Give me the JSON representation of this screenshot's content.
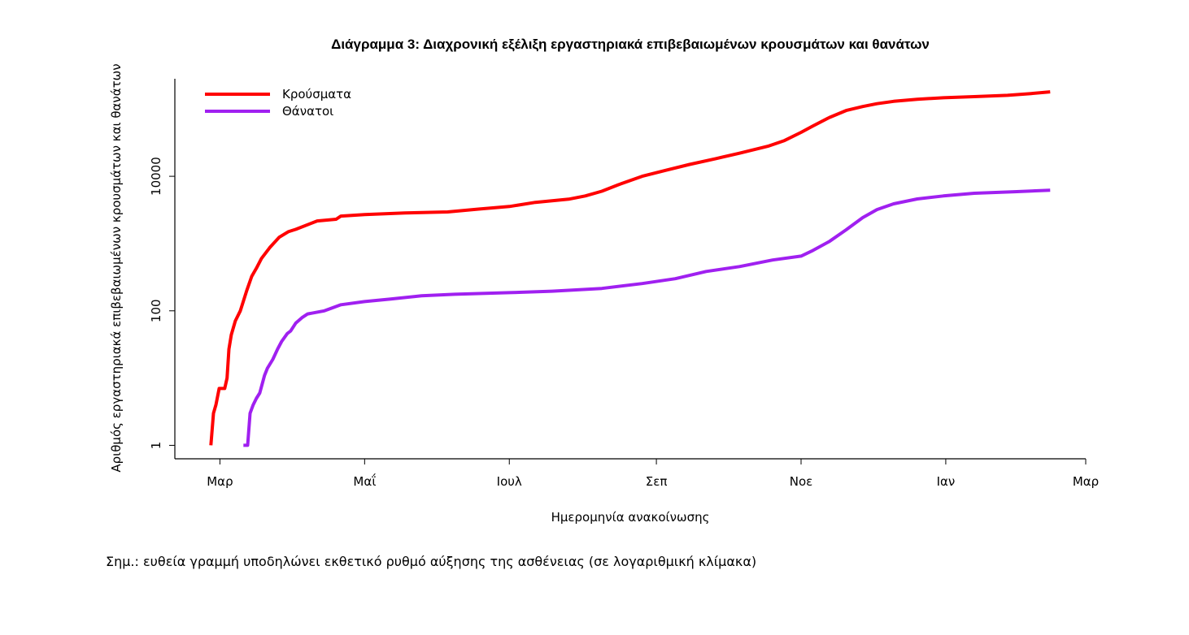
{
  "chart_data": {
    "type": "line",
    "title": "Διάγραμμα 3: Διαχρονική εξέλιξη εργαστηριακά επιβεβαιωμένων κρουσμάτων και θανάτων",
    "xlabel": "Ημερομηνία ανακοίνωσης",
    "ylabel": "Αριθμός εργαστηριακά επιβεβαιωμένων κρουσμάτων και θανάτων",
    "x_unit": "days since Mar 1 (first tick)",
    "xlim": [
      -19,
      365
    ],
    "ylim_log10": [
      -0.2,
      5.45
    ],
    "yscale": "log",
    "x_ticks": [
      {
        "label": "Μαρ",
        "day": 0
      },
      {
        "label": "Μαΐ",
        "day": 61
      },
      {
        "label": "Ιουλ",
        "day": 122
      },
      {
        "label": "Σεπ",
        "day": 184
      },
      {
        "label": "Νοε",
        "day": 245
      },
      {
        "label": "Ιαν",
        "day": 306
      },
      {
        "label": "Μαρ",
        "day": 365
      }
    ],
    "y_ticks": [
      {
        "label": "1",
        "value": 1
      },
      {
        "label": "100",
        "value": 100
      },
      {
        "label": "10000",
        "value": 10000
      }
    ],
    "legend_position": "top-left",
    "grid": false,
    "series": [
      {
        "name": "Κρούσματα",
        "color": "#ff0000",
        "x": [
          -3.8,
          -2.7,
          -1.7,
          -0.3,
          2,
          3,
          3.8,
          4.8,
          6.5,
          8.6,
          11.3,
          13.4,
          15.4,
          17.5,
          21,
          25,
          28.8,
          32,
          41,
          49,
          51,
          61,
          78,
          96,
          109,
          122,
          133,
          147,
          154,
          161,
          168,
          178,
          188,
          198,
          209,
          219,
          231,
          238,
          245,
          250,
          257,
          264,
          271,
          277,
          284,
          294,
          305,
          318,
          332,
          342,
          350
        ],
        "y": [
          1,
          3,
          4,
          7,
          7,
          10,
          27,
          44,
          71,
          100,
          200,
          325,
          430,
          600,
          870,
          1240,
          1500,
          1630,
          2170,
          2300,
          2560,
          2700,
          2850,
          2950,
          3250,
          3560,
          4100,
          4570,
          5100,
          6000,
          7500,
          10000,
          12300,
          15000,
          18300,
          22000,
          28000,
          34000,
          45000,
          56000,
          75000,
          95000,
          109000,
          120000,
          130000,
          140000,
          147000,
          153000,
          160000,
          170000,
          180000
        ]
      },
      {
        "name": "Θάνατοι",
        "color": "#a020f0",
        "x": [
          9.9,
          11.7,
          12.7,
          14,
          15.4,
          16.8,
          18.8,
          20,
          22.3,
          24.3,
          26,
          28.4,
          29.8,
          32,
          34.6,
          37,
          44,
          51,
          61,
          72,
          85,
          99,
          122,
          140,
          161,
          178,
          192,
          205,
          219,
          233,
          245,
          250,
          257,
          264,
          271,
          277,
          284,
          294,
          305,
          318,
          335,
          350
        ],
        "y": [
          1,
          1,
          3,
          4,
          5,
          6,
          11,
          14,
          19,
          27,
          35,
          46,
          50,
          66,
          79,
          90,
          100,
          123,
          137,
          150,
          167,
          176,
          186,
          196,
          215,
          254,
          300,
          385,
          455,
          570,
          650,
          790,
          1080,
          1600,
          2430,
          3200,
          3900,
          4600,
          5100,
          5600,
          5900,
          6200
        ]
      }
    ]
  },
  "note": "Σημ.: ευθεία γραμμή υποδηλώνει εκθετικό ρυθμό αύξησης της ασθένειας (σε λογαριθμική κλίμακα)"
}
